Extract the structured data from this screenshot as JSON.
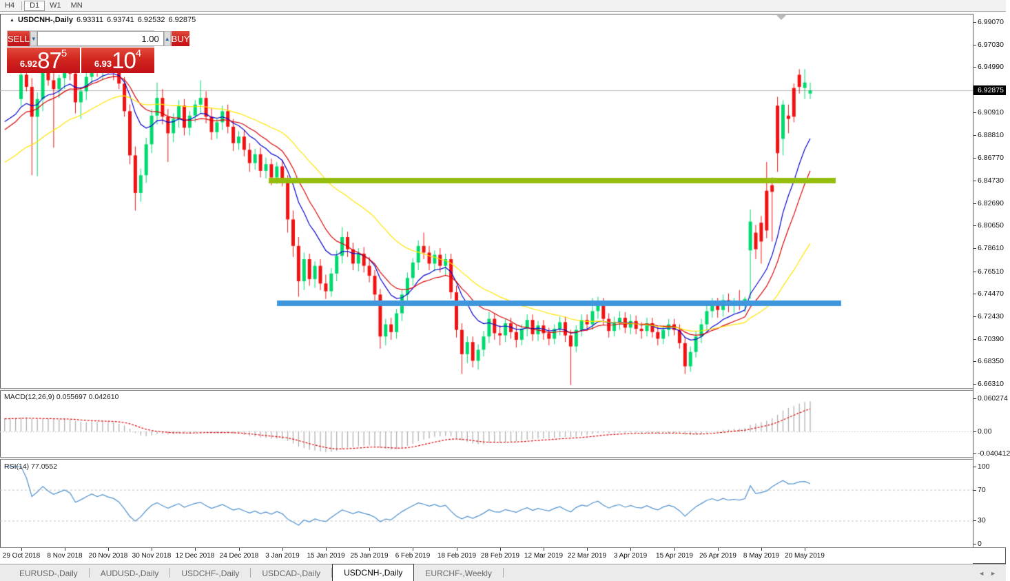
{
  "toolbar": {
    "timeframes": [
      "H4",
      "D1",
      "W1",
      "MN"
    ],
    "active": "D1"
  },
  "window_title": {
    "symbol_period": "USDCNH-,Daily",
    "open": "6.93311",
    "high": "6.93741",
    "low": "6.92532",
    "close": "6.92875"
  },
  "trade_panel": {
    "sell_label": "SELL",
    "buy_label": "BUY",
    "volume": "1.00",
    "bid_small": "6.92",
    "bid_big": "87",
    "bid_sup": "5",
    "ask_small": "6.93",
    "ask_big": "10",
    "ask_sup": "4"
  },
  "tabs": {
    "items": [
      "EURUSD-,Daily",
      "AUDUSD-,Daily",
      "USDCHF-,Daily",
      "USDCAD-,Daily",
      "USDCNH-,Daily",
      "EURCHF-,Weekly"
    ],
    "active_index": 4
  },
  "chart_data": {
    "type": "candlestick",
    "symbol": "USDCNH",
    "period": "Daily",
    "price_axis": {
      "labels": [
        "6.99070",
        "6.97030",
        "6.94990",
        "6.90910",
        "6.88810",
        "6.86770",
        "6.84730",
        "6.82690",
        "6.80650",
        "6.78610",
        "6.76510",
        "6.74470",
        "6.72430",
        "6.70390",
        "6.68350",
        "6.66310"
      ],
      "current_price": "6.92875",
      "top_price": 6.9907,
      "bottom_price": 6.6631
    },
    "x_labels": [
      "29 Oct 2018",
      "8 Nov 2018",
      "20 Nov 2018",
      "30 Nov 2018",
      "12 Dec 2018",
      "24 Dec 2018",
      "3 Jan 2019",
      "15 Jan 2019",
      "25 Jan 2019",
      "6 Feb 2019",
      "18 Feb 2019",
      "28 Feb 2019",
      "12 Mar 2019",
      "22 Mar 2019",
      "3 Apr 2019",
      "15 Apr 2019",
      "26 Apr 2019",
      "8 May 2019",
      "20 May 2019"
    ],
    "bars_per_label": 8,
    "colors": {
      "candle_up": "#00d96e",
      "candle_down": "#f01212",
      "ma_fast": "#0000cc",
      "ma_mid": "#d90000",
      "ma_slow": "#ffe400",
      "hline_resistance": "#95bd0e",
      "hline_support": "#3e96dc",
      "current_price_line": "#b8b8b8",
      "macd_histogram": "#b0b0b0",
      "macd_signal": "#dd0000",
      "rsi_line": "#4d8fcc",
      "rsi_levels": "#c0c0c0"
    },
    "horizontal_lines": [
      {
        "name": "resistance",
        "price": 6.8473,
        "color_key": "hline_resistance"
      },
      {
        "name": "support",
        "price": 6.736,
        "color_key": "hline_support"
      }
    ],
    "candles_ohlc": [
      [
        6.921,
        6.948,
        6.915,
        6.943
      ],
      [
        6.943,
        6.951,
        6.928,
        6.932
      ],
      [
        6.932,
        6.94,
        6.852,
        6.905
      ],
      [
        6.905,
        6.927,
        6.851,
        6.921
      ],
      [
        6.921,
        6.952,
        6.91,
        6.948
      ],
      [
        6.948,
        6.957,
        6.933,
        6.938
      ],
      [
        6.938,
        6.946,
        6.877,
        6.93
      ],
      [
        6.93,
        6.943,
        6.922,
        6.94
      ],
      [
        6.94,
        6.955,
        6.93,
        6.951
      ],
      [
        6.951,
        6.958,
        6.938,
        6.944
      ],
      [
        6.944,
        6.949,
        6.908,
        6.918
      ],
      [
        6.918,
        6.932,
        6.903,
        6.928
      ],
      [
        6.928,
        6.945,
        6.92,
        6.941
      ],
      [
        6.941,
        6.962,
        6.935,
        6.955
      ],
      [
        6.955,
        6.965,
        6.941,
        6.947
      ],
      [
        6.947,
        6.96,
        6.938,
        6.957
      ],
      [
        6.957,
        6.963,
        6.944,
        6.95
      ],
      [
        6.95,
        6.959,
        6.938,
        6.946
      ],
      [
        6.946,
        6.954,
        6.93,
        6.935
      ],
      [
        6.935,
        6.941,
        6.905,
        6.91
      ],
      [
        6.91,
        6.916,
        6.862,
        6.87
      ],
      [
        6.87,
        6.878,
        6.82,
        6.836
      ],
      [
        6.836,
        6.858,
        6.828,
        6.852
      ],
      [
        6.852,
        6.886,
        6.845,
        6.88
      ],
      [
        6.88,
        6.912,
        6.872,
        6.906
      ],
      [
        6.906,
        6.936,
        6.898,
        6.922
      ],
      [
        6.922,
        6.93,
        6.898,
        6.905
      ],
      [
        6.905,
        6.912,
        6.864,
        6.89
      ],
      [
        6.89,
        6.908,
        6.882,
        6.903
      ],
      [
        6.903,
        6.92,
        6.895,
        6.915
      ],
      [
        6.915,
        6.921,
        6.888,
        6.895
      ],
      [
        6.895,
        6.91,
        6.888,
        6.906
      ],
      [
        6.906,
        6.92,
        6.9,
        6.916
      ],
      [
        6.916,
        6.938,
        6.908,
        6.922
      ],
      [
        6.922,
        6.928,
        6.899,
        6.905
      ],
      [
        6.905,
        6.913,
        6.884,
        6.891
      ],
      [
        6.891,
        6.904,
        6.885,
        6.9
      ],
      [
        6.9,
        6.915,
        6.893,
        6.91
      ],
      [
        6.91,
        6.916,
        6.89,
        6.896
      ],
      [
        6.896,
        6.903,
        6.874,
        6.881
      ],
      [
        6.881,
        6.892,
        6.875,
        6.887
      ],
      [
        6.887,
        6.893,
        6.869,
        6.875
      ],
      [
        6.875,
        6.881,
        6.855,
        6.863
      ],
      [
        6.863,
        6.876,
        6.857,
        6.871
      ],
      [
        6.871,
        6.877,
        6.85,
        6.856
      ],
      [
        6.856,
        6.868,
        6.849,
        6.862
      ],
      [
        6.862,
        6.867,
        6.843,
        6.85
      ],
      [
        6.85,
        6.864,
        6.844,
        6.86
      ],
      [
        6.86,
        6.866,
        6.842,
        6.848
      ],
      [
        6.848,
        6.852,
        6.8,
        6.812
      ],
      [
        6.812,
        6.82,
        6.778,
        6.788
      ],
      [
        6.788,
        6.796,
        6.742,
        6.756
      ],
      [
        6.756,
        6.782,
        6.748,
        6.776
      ],
      [
        6.776,
        6.781,
        6.752,
        6.758
      ],
      [
        6.758,
        6.774,
        6.75,
        6.77
      ],
      [
        6.77,
        6.776,
        6.748,
        6.754
      ],
      [
        6.754,
        6.762,
        6.74,
        6.747
      ],
      [
        6.747,
        6.768,
        6.742,
        6.763
      ],
      [
        6.763,
        6.784,
        6.756,
        6.779
      ],
      [
        6.779,
        6.805,
        6.772,
        6.796
      ],
      [
        6.796,
        6.801,
        6.778,
        6.785
      ],
      [
        6.785,
        6.791,
        6.766,
        6.772
      ],
      [
        6.772,
        6.786,
        6.765,
        6.781
      ],
      [
        6.781,
        6.787,
        6.764,
        6.77
      ],
      [
        6.77,
        6.778,
        6.755,
        6.761
      ],
      [
        6.761,
        6.766,
        6.738,
        6.744
      ],
      [
        6.744,
        6.749,
        6.695,
        6.706
      ],
      [
        6.706,
        6.722,
        6.698,
        6.717
      ],
      [
        6.717,
        6.723,
        6.703,
        6.71
      ],
      [
        6.71,
        6.731,
        6.704,
        6.727
      ],
      [
        6.727,
        6.748,
        6.72,
        6.744
      ],
      [
        6.744,
        6.764,
        6.738,
        6.759
      ],
      [
        6.759,
        6.777,
        6.752,
        6.773
      ],
      [
        6.773,
        6.793,
        6.766,
        6.788
      ],
      [
        6.788,
        6.8,
        6.776,
        6.782
      ],
      [
        6.782,
        6.788,
        6.766,
        6.772
      ],
      [
        6.772,
        6.784,
        6.765,
        6.78
      ],
      [
        6.78,
        6.786,
        6.764,
        6.77
      ],
      [
        6.77,
        6.781,
        6.762,
        6.776
      ],
      [
        6.776,
        6.781,
        6.74,
        6.746
      ],
      [
        6.746,
        6.752,
        6.705,
        6.712
      ],
      [
        6.712,
        6.718,
        6.672,
        6.69
      ],
      [
        6.69,
        6.706,
        6.682,
        6.701
      ],
      [
        6.701,
        6.706,
        6.678,
        6.684
      ],
      [
        6.684,
        6.699,
        6.676,
        6.694
      ],
      [
        6.694,
        6.711,
        6.688,
        6.706
      ],
      [
        6.706,
        6.728,
        6.7,
        6.722
      ],
      [
        6.722,
        6.727,
        6.703,
        6.709
      ],
      [
        6.709,
        6.716,
        6.698,
        6.707
      ],
      [
        6.707,
        6.722,
        6.701,
        6.718
      ],
      [
        6.718,
        6.723,
        6.704,
        6.71
      ],
      [
        6.71,
        6.716,
        6.696,
        6.703
      ],
      [
        6.703,
        6.717,
        6.698,
        6.713
      ],
      [
        6.713,
        6.726,
        6.706,
        6.721
      ],
      [
        6.721,
        6.726,
        6.702,
        6.708
      ],
      [
        6.708,
        6.72,
        6.702,
        6.716
      ],
      [
        6.716,
        6.721,
        6.703,
        6.709
      ],
      [
        6.709,
        6.714,
        6.698,
        6.704
      ],
      [
        6.704,
        6.717,
        6.699,
        6.713
      ],
      [
        6.713,
        6.724,
        6.707,
        6.719
      ],
      [
        6.719,
        6.724,
        6.701,
        6.707
      ],
      [
        6.707,
        6.712,
        6.662,
        6.697
      ],
      [
        6.697,
        6.716,
        6.692,
        6.712
      ],
      [
        6.712,
        6.726,
        6.706,
        6.721
      ],
      [
        6.721,
        6.726,
        6.711,
        6.717
      ],
      [
        6.717,
        6.741,
        6.712,
        6.729
      ],
      [
        6.729,
        6.742,
        6.722,
        6.736
      ],
      [
        6.736,
        6.741,
        6.716,
        6.722
      ],
      [
        6.722,
        6.727,
        6.705,
        6.711
      ],
      [
        6.711,
        6.724,
        6.706,
        6.719
      ],
      [
        6.719,
        6.729,
        6.712,
        6.723
      ],
      [
        6.723,
        6.728,
        6.709,
        6.714
      ],
      [
        6.714,
        6.726,
        6.708,
        6.72
      ],
      [
        6.72,
        6.725,
        6.708,
        6.713
      ],
      [
        6.713,
        6.719,
        6.704,
        6.711
      ],
      [
        6.711,
        6.723,
        6.706,
        6.718
      ],
      [
        6.718,
        6.723,
        6.705,
        6.71
      ],
      [
        6.71,
        6.715,
        6.698,
        6.704
      ],
      [
        6.704,
        6.716,
        6.699,
        6.712
      ],
      [
        6.712,
        6.722,
        6.706,
        6.717
      ],
      [
        6.717,
        6.722,
        6.707,
        6.712
      ],
      [
        6.712,
        6.717,
        6.695,
        6.7
      ],
      [
        6.7,
        6.705,
        6.672,
        6.679
      ],
      [
        6.679,
        6.697,
        6.674,
        6.692
      ],
      [
        6.692,
        6.711,
        6.687,
        6.706
      ],
      [
        6.706,
        6.722,
        6.7,
        6.717
      ],
      [
        6.717,
        6.734,
        6.711,
        6.729
      ],
      [
        6.729,
        6.741,
        6.723,
        6.736
      ],
      [
        6.736,
        6.741,
        6.723,
        6.73
      ],
      [
        6.73,
        6.744,
        6.724,
        6.739
      ],
      [
        6.739,
        6.745,
        6.728,
        6.734
      ],
      [
        6.734,
        6.741,
        6.727,
        6.737
      ],
      [
        6.737,
        6.748,
        6.73,
        6.735
      ],
      [
        6.735,
        6.742,
        6.728,
        6.74
      ],
      [
        6.784,
        6.821,
        6.74,
        6.81
      ],
      [
        6.8,
        6.807,
        6.776,
        6.785
      ],
      [
        6.809,
        6.815,
        6.772,
        6.792
      ],
      [
        6.838,
        6.864,
        6.795,
        6.802
      ],
      [
        6.843,
        6.85,
        6.792,
        6.837
      ],
      [
        6.915,
        6.923,
        6.855,
        6.872
      ],
      [
        6.885,
        6.92,
        6.87,
        6.916
      ],
      [
        6.906,
        6.916,
        6.89,
        6.903
      ],
      [
        6.931,
        6.935,
        6.9,
        6.905
      ],
      [
        6.943,
        6.948,
        6.926,
        6.932
      ],
      [
        6.931,
        6.948,
        6.921,
        6.936
      ],
      [
        6.926,
        6.936,
        6.921,
        6.9288
      ]
    ],
    "macd": {
      "label": "MACD(12,26,9)",
      "fast": 12,
      "slow": 26,
      "signal": 9,
      "value_main": "0.055697",
      "value_signal": "0.042610",
      "axis_labels": [
        "0.060274",
        "0.00",
        "-0.040412"
      ],
      "axis_values": [
        0.060274,
        0,
        -0.040412
      ]
    },
    "rsi": {
      "label": "RSI(14)",
      "period": 14,
      "value": "77.0552",
      "axis_labels": [
        "100",
        "70",
        "30",
        "0"
      ],
      "levels": [
        70,
        30
      ]
    }
  },
  "tab_arrows": {
    "left": "◄",
    "right": "►"
  }
}
